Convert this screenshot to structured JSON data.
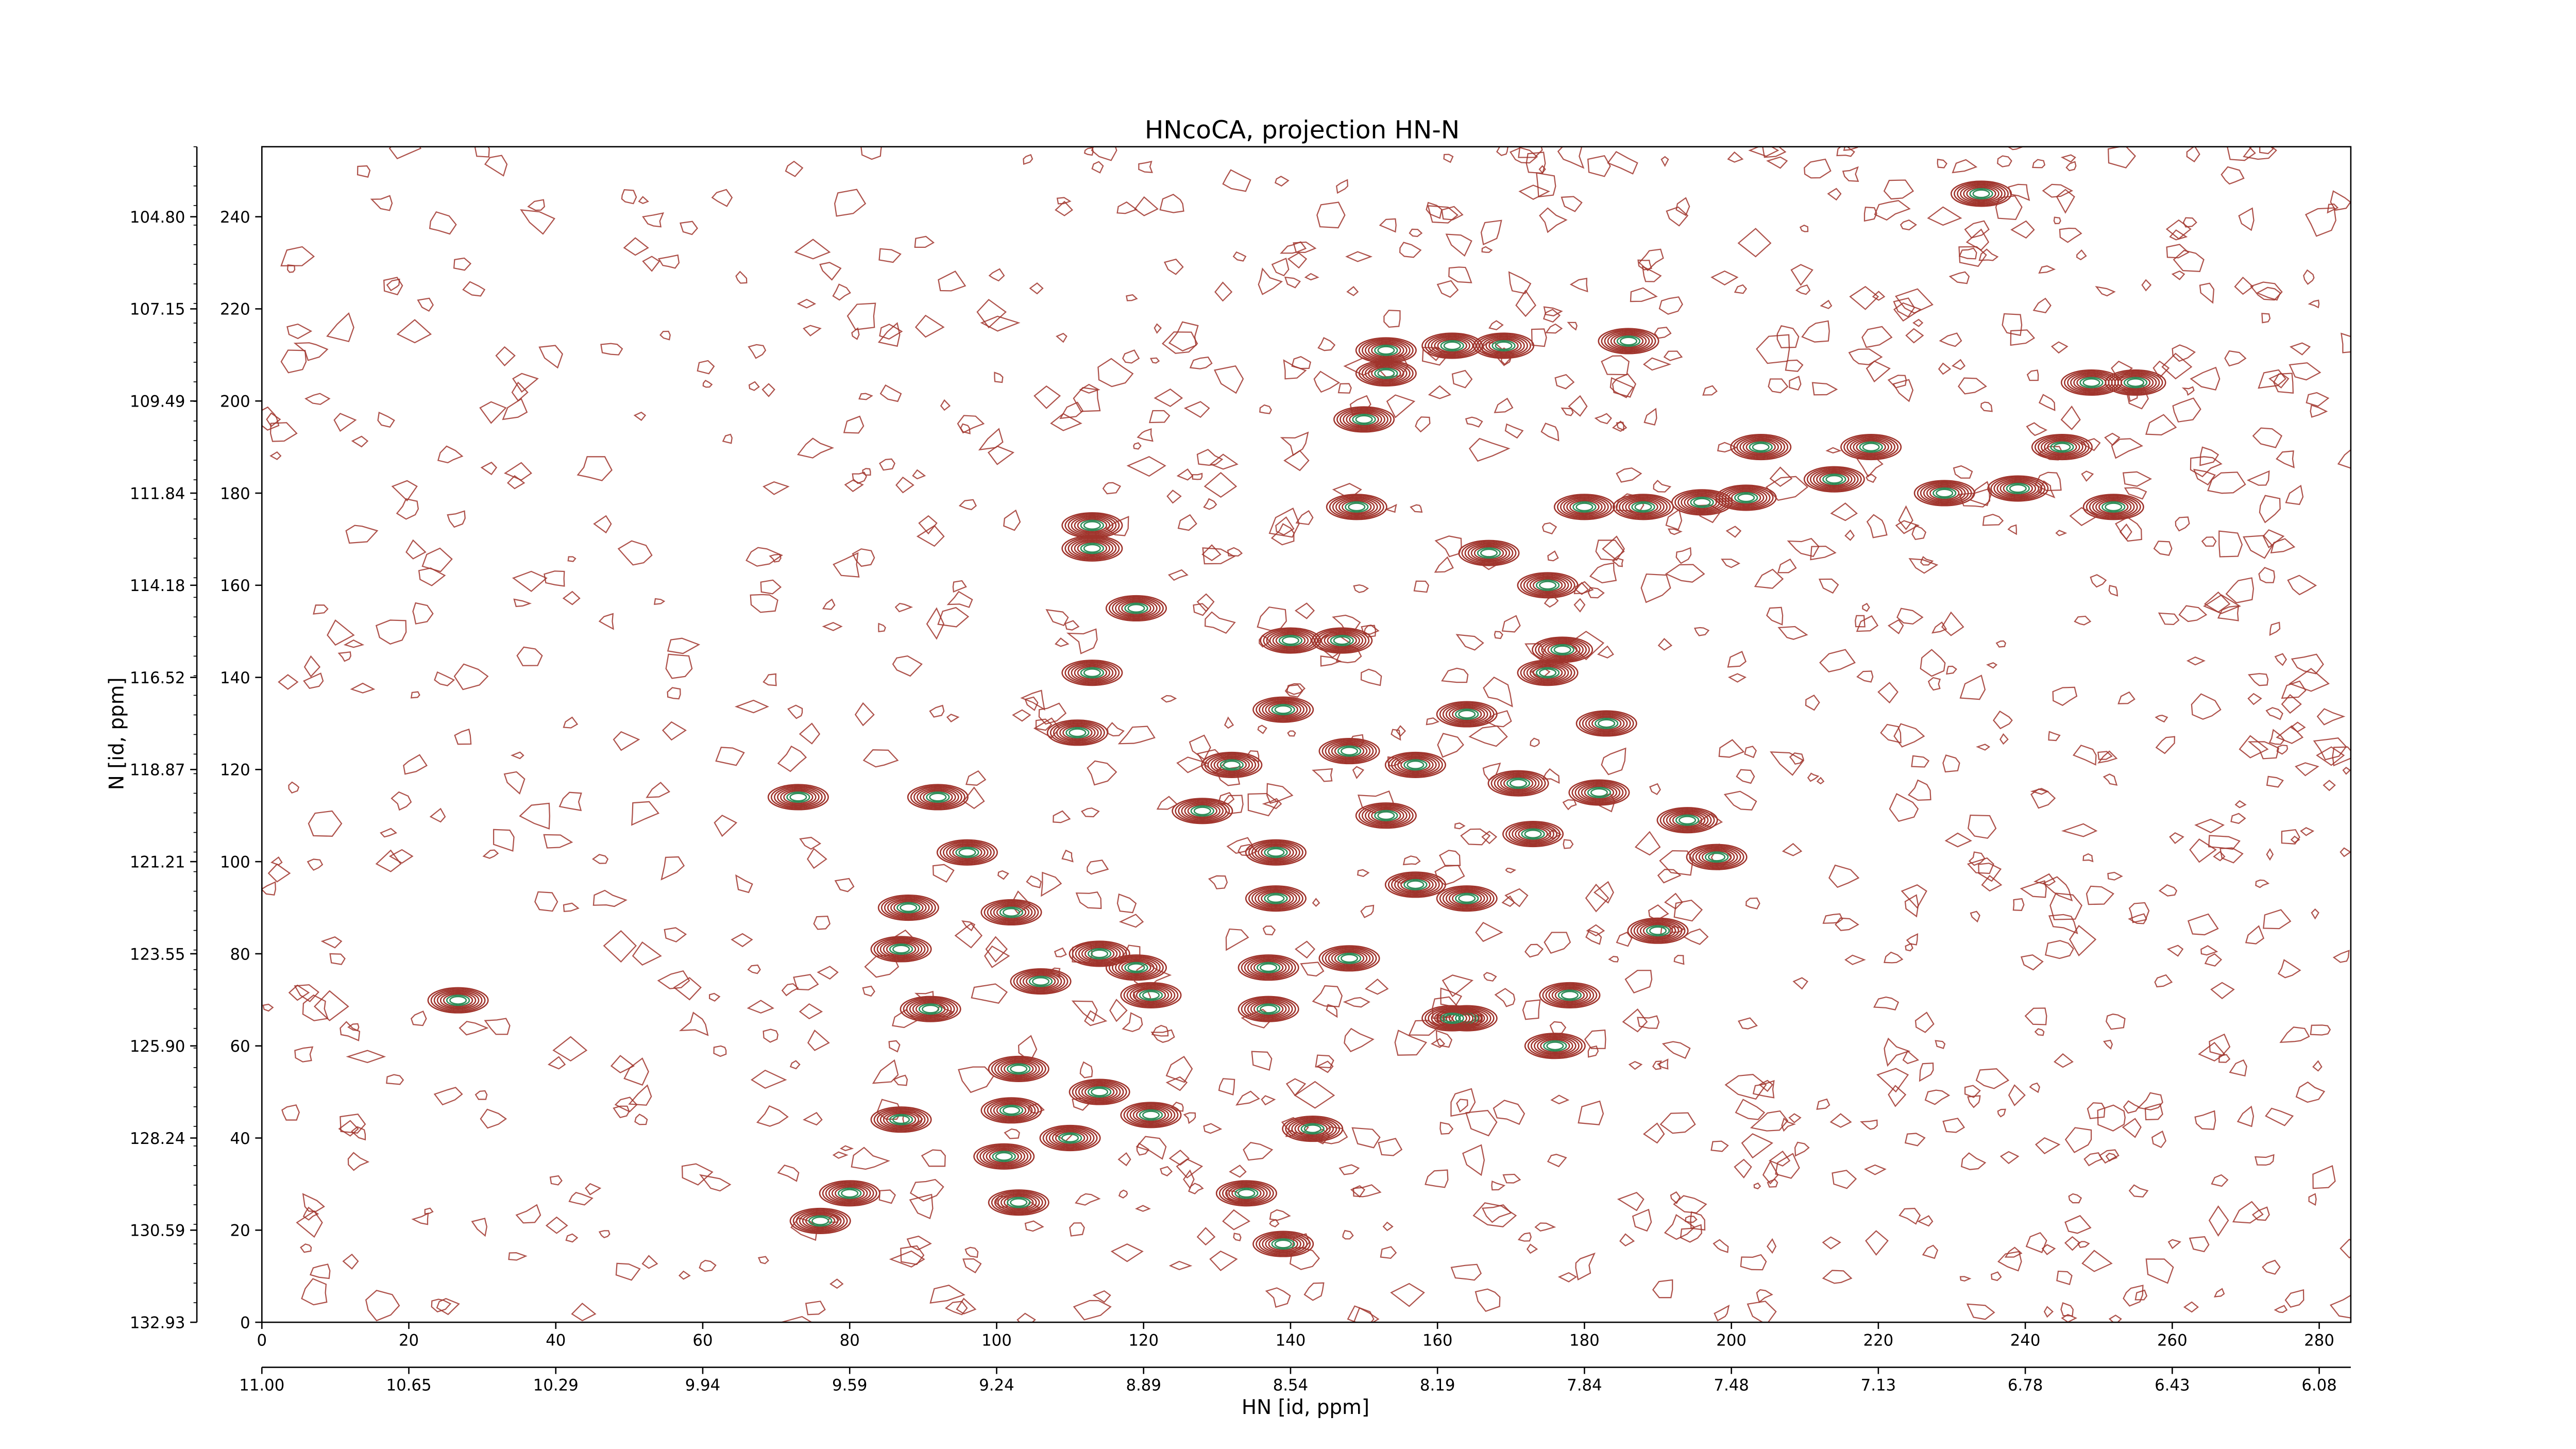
{
  "chart_data": {
    "type": "contour",
    "title": "HNcoCA, projection HN-N",
    "xlabel": "HN [id, ppm]",
    "ylabel": "N [id, ppm]",
    "xlim": [
      0,
      284.3
    ],
    "ylim": [
      0,
      255.2
    ],
    "xticks": [
      0,
      20,
      40,
      60,
      80,
      100,
      120,
      140,
      160,
      180,
      200,
      220,
      240,
      260,
      280
    ],
    "yticks": [
      0,
      20,
      40,
      60,
      80,
      100,
      120,
      140,
      160,
      180,
      200,
      220,
      240
    ],
    "x2ticks": [
      {
        "value": 0,
        "label": "11.00"
      },
      {
        "value": 20,
        "label": "10.65"
      },
      {
        "value": 40,
        "label": "10.29"
      },
      {
        "value": 60,
        "label": "9.94"
      },
      {
        "value": 80,
        "label": "9.59"
      },
      {
        "value": 100,
        "label": "9.24"
      },
      {
        "value": 120,
        "label": "8.89"
      },
      {
        "value": 140,
        "label": "8.54"
      },
      {
        "value": 160,
        "label": "8.19"
      },
      {
        "value": 180,
        "label": "7.84"
      },
      {
        "value": 200,
        "label": "7.48"
      },
      {
        "value": 220,
        "label": "7.13"
      },
      {
        "value": 240,
        "label": "6.78"
      },
      {
        "value": 260,
        "label": "6.43"
      },
      {
        "value": 280,
        "label": "6.08"
      }
    ],
    "y2ticks": [
      {
        "value": 0,
        "label": "132.93"
      },
      {
        "value": 20,
        "label": "130.59"
      },
      {
        "value": 40,
        "label": "128.24"
      },
      {
        "value": 60,
        "label": "125.90"
      },
      {
        "value": 80,
        "label": "123.55"
      },
      {
        "value": 100,
        "label": "121.21"
      },
      {
        "value": 120,
        "label": "118.87"
      },
      {
        "value": 140,
        "label": "116.52"
      },
      {
        "value": 160,
        "label": "114.18"
      },
      {
        "value": 180,
        "label": "111.84"
      },
      {
        "value": 200,
        "label": "109.49"
      },
      {
        "value": 220,
        "label": "107.15"
      },
      {
        "value": 240,
        "label": "104.80"
      }
    ],
    "color": "#a0342c",
    "inner_color": "#2e8b57",
    "peaks": {
      "x": [
        26.7,
        73,
        92,
        96,
        88,
        87,
        102,
        91,
        106,
        103,
        87,
        102,
        101,
        110,
        103,
        114,
        121,
        121,
        119,
        114,
        76,
        80,
        134,
        143,
        139,
        113,
        113,
        119,
        113,
        111,
        140,
        147,
        139,
        132,
        128,
        138,
        138,
        137,
        137,
        153,
        153,
        150,
        162,
        169,
        186,
        149,
        167,
        175,
        177,
        175,
        183,
        182,
        194,
        198,
        190,
        178,
        176,
        164,
        180,
        188,
        196,
        202,
        204,
        214,
        219,
        229,
        234,
        239,
        249,
        255,
        245,
        252,
        153,
        157,
        164,
        148,
        157,
        171,
        173,
        164,
        148,
        162
      ],
      "y": [
        69.9,
        114,
        114,
        102,
        90,
        81,
        89,
        68,
        74,
        55,
        44,
        46,
        36,
        40,
        26,
        50,
        45,
        71,
        77,
        80,
        22,
        28,
        28,
        42,
        17,
        173,
        168,
        155,
        141,
        128,
        148,
        148,
        133,
        121,
        111,
        102,
        92,
        77,
        68,
        211,
        206,
        196,
        212,
        212,
        213,
        177,
        167,
        160,
        146,
        141,
        130,
        115,
        109,
        101,
        85,
        71,
        60,
        66,
        177,
        177,
        178,
        179,
        190,
        183,
        190,
        180,
        245,
        181,
        204,
        204,
        190,
        177,
        110,
        95,
        92,
        79,
        121,
        117,
        106,
        132,
        124,
        66
      ]
    }
  }
}
